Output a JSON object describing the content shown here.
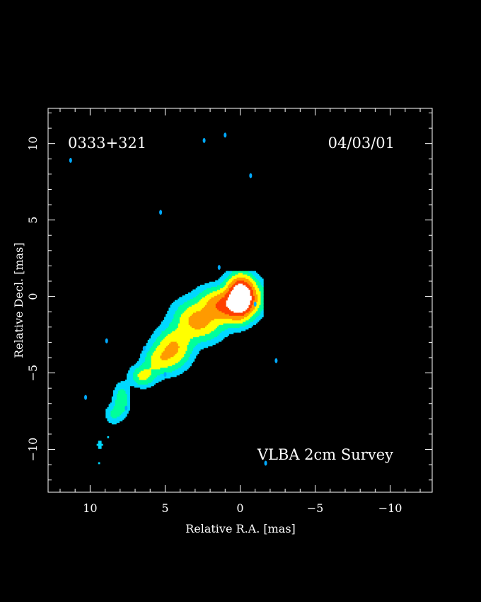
{
  "chart_data": {
    "type": "heatmap",
    "source_name": "0333+321",
    "epoch": "04/03/01",
    "survey_label": "VLBA 2cm Survey",
    "xlabel": "Relative R.A. [mas]",
    "ylabel": "Relative Decl. [mas]",
    "xlim": [
      12.8,
      -12.8
    ],
    "ylim": [
      -12.8,
      12.3
    ],
    "x_ticks": [
      10,
      5,
      0,
      -5,
      -10
    ],
    "y_ticks": [
      10,
      5,
      0,
      -5,
      -10
    ],
    "x_tick_labels": [
      "10",
      "5",
      "0",
      "−5",
      "−10"
    ],
    "y_tick_labels": [
      "10",
      "5",
      "0",
      "−5",
      "−10"
    ],
    "colormap": [
      "#00d8ff",
      "#00ff9a",
      "#ffff00",
      "#ff9a00",
      "#ff4000",
      "#ffffff"
    ],
    "background": "#000000",
    "components": [
      {
        "x": 0.0,
        "y": 0.0,
        "sx": 0.55,
        "sy": 0.85,
        "amp": 1.0,
        "rot": 0
      },
      {
        "x": -0.3,
        "y": -0.1,
        "sx": 0.9,
        "sy": 0.8,
        "amp": 0.45,
        "rot": 0
      },
      {
        "x": 1.3,
        "y": -0.6,
        "sx": 0.9,
        "sy": 0.65,
        "amp": 0.55,
        "rot": 25
      },
      {
        "x": 2.8,
        "y": -1.6,
        "sx": 1.0,
        "sy": 0.75,
        "amp": 0.48,
        "rot": 25
      },
      {
        "x": 4.5,
        "y": -3.4,
        "sx": 0.8,
        "sy": 0.95,
        "amp": 0.46,
        "rot": 30
      },
      {
        "x": 5.6,
        "y": -4.2,
        "sx": 0.6,
        "sy": 0.55,
        "amp": 0.2,
        "rot": 0
      },
      {
        "x": 6.5,
        "y": -5.2,
        "sx": 0.55,
        "sy": 0.45,
        "amp": 0.3,
        "rot": 0
      },
      {
        "x": 7.9,
        "y": -6.8,
        "sx": 0.35,
        "sy": 0.7,
        "amp": 0.24,
        "rot": 0
      },
      {
        "x": 8.5,
        "y": -7.7,
        "sx": 0.35,
        "sy": 0.45,
        "amp": 0.14,
        "rot": 0
      },
      {
        "x": 9.35,
        "y": -9.7,
        "sx": 0.15,
        "sy": 0.25,
        "amp": 0.1,
        "rot": 0
      },
      {
        "x": 9.4,
        "y": -10.9,
        "sx": 0.1,
        "sy": 0.12,
        "amp": 0.08,
        "rot": 0
      },
      {
        "x": 8.8,
        "y": -9.2,
        "sx": 0.12,
        "sy": 0.15,
        "amp": 0.07,
        "rot": 0
      }
    ],
    "noise_spots": [
      {
        "x": 2.4,
        "y": 10.2
      },
      {
        "x": 1.0,
        "y": 10.55
      },
      {
        "x": -0.7,
        "y": 7.9
      },
      {
        "x": 11.3,
        "y": 8.9
      },
      {
        "x": 5.3,
        "y": 5.5
      },
      {
        "x": 1.4,
        "y": 1.9
      },
      {
        "x": 8.9,
        "y": -2.9
      },
      {
        "x": 6.4,
        "y": -3.4
      },
      {
        "x": 5.0,
        "y": -5.1
      },
      {
        "x": -2.4,
        "y": -4.2
      },
      {
        "x": -1.0,
        "y": -0.5
      },
      {
        "x": 10.3,
        "y": -6.6
      },
      {
        "x": 7.6,
        "y": -7.3
      },
      {
        "x": -1.7,
        "y": -10.9
      }
    ]
  }
}
